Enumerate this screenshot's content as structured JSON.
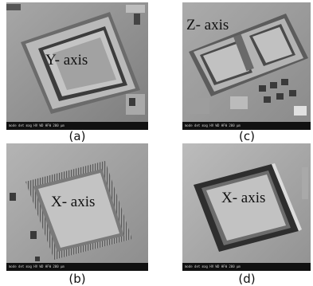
{
  "panels": {
    "a": {
      "label": "Y- axis",
      "caption": "(a)"
    },
    "b": {
      "label": "X- axis",
      "caption": "(b)"
    },
    "c": {
      "label": "Z- axis",
      "caption": "(c)"
    },
    "d": {
      "label": "X- axis",
      "caption": "(d)"
    }
  },
  "sem_databar": "mode det mag HV WD HFW 200 µm"
}
